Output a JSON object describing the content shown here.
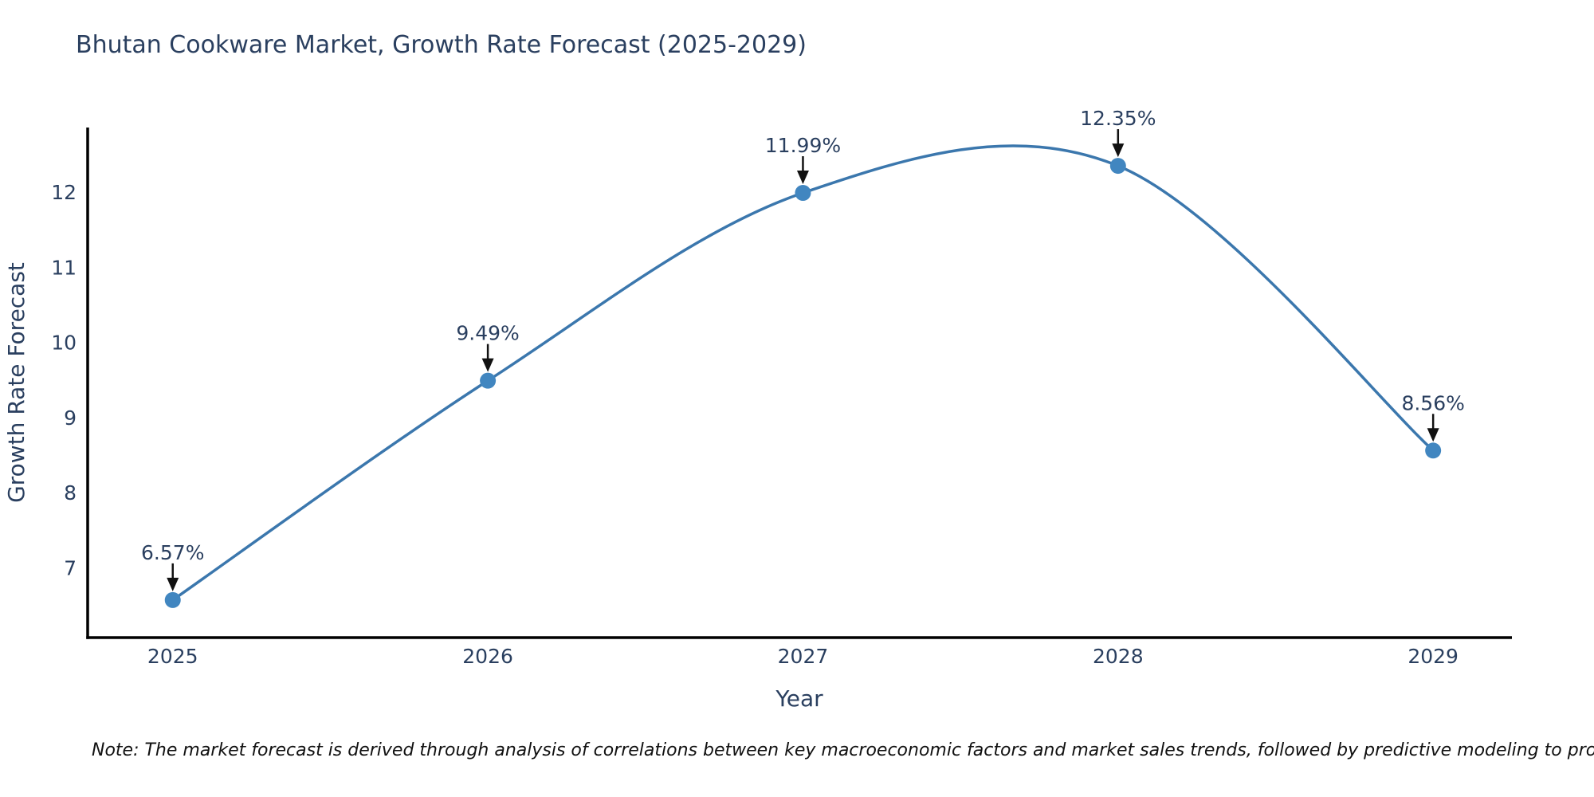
{
  "title": "Bhutan Cookware Market, Growth Rate Forecast (2025-2029)",
  "note": "Note: The market forecast is derived through analysis of correlations between key macroeconomic factors and market sales trends, followed by predictive modeling to project future sales",
  "chart_data": {
    "type": "line",
    "line_shape": "spline",
    "title": "Bhutan Cookware Market, Growth Rate Forecast (2025-2029)",
    "x": [
      2025,
      2026,
      2027,
      2028,
      2029
    ],
    "y": [
      6.57,
      9.49,
      11.99,
      12.35,
      8.56
    ],
    "point_labels": [
      "6.57%",
      "9.49%",
      "11.99%",
      "12.35%",
      "8.56%"
    ],
    "xlabel": "Year",
    "ylabel": "Growth Rate Forecast",
    "x_ticks": [
      "2025",
      "2026",
      "2027",
      "2028",
      "2029"
    ],
    "y_ticks": [
      7,
      8,
      9,
      10,
      11,
      12
    ],
    "xlim": [
      2024.73,
      2029.25
    ],
    "ylim": [
      6.07,
      12.86
    ],
    "grid": false,
    "legend": "none",
    "colors": {
      "line": "#3b77ad",
      "marker": "#4186c0",
      "annotation_arrow": "#111111",
      "annotation_text": "#2a3f5f",
      "axis": "#000000",
      "text": "#2a3f5f",
      "note_text": "#111111",
      "background": "#ffffff"
    }
  }
}
